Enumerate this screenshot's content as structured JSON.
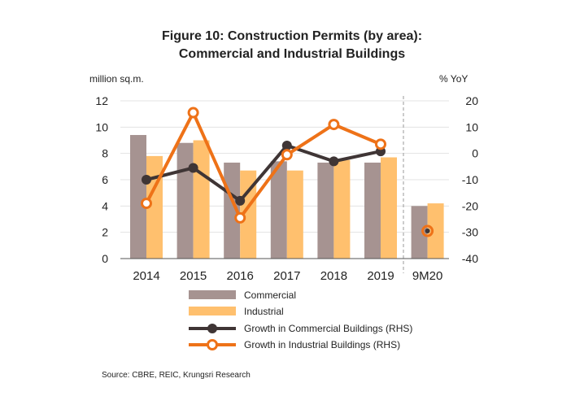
{
  "chart_data": {
    "type": "bar",
    "title": "Figure 10: Construction Permits (by area):",
    "subtitle": "Commercial and Industrial Buildings",
    "ylabel": "million sq.m.",
    "y2label": "% YoY",
    "ylim": [
      0,
      12
    ],
    "y2lim": [
      -40,
      20
    ],
    "yticks": [
      "0",
      "2",
      "4",
      "6",
      "8",
      "10",
      "12"
    ],
    "y2ticks": [
      "-40",
      "-30",
      "-20",
      "-10",
      "0",
      "10",
      "20"
    ],
    "grid": true,
    "categories": [
      "2014",
      "2015",
      "2016",
      "2017",
      "2018",
      "2019",
      "9M20"
    ],
    "series": [
      {
        "name": "Commercial",
        "type": "bar",
        "axis": "left",
        "color": "#A69391",
        "values": [
          9.4,
          8.8,
          7.3,
          7.4,
          7.3,
          7.3,
          4.0
        ]
      },
      {
        "name": "Industrial",
        "type": "bar",
        "axis": "left",
        "color": "#FFC06E",
        "values": [
          7.8,
          9.0,
          6.7,
          6.7,
          7.5,
          7.7,
          4.2
        ]
      },
      {
        "name": "Growth in Commercial Buildings (RHS)",
        "type": "line",
        "axis": "right",
        "color": "#3F3535",
        "values": [
          -10,
          -5.5,
          -18,
          3,
          -3,
          0.8,
          -29.5
        ]
      },
      {
        "name": "Growth in Industrial Buildings (RHS)",
        "type": "line",
        "axis": "right",
        "color": "#EE7218",
        "values": [
          -19,
          15.5,
          -24.5,
          -0.5,
          11,
          3.5,
          -29.5
        ]
      }
    ],
    "legend_position": "bottom",
    "source": "Source: CBRE, REIC, Krungsri Research"
  }
}
